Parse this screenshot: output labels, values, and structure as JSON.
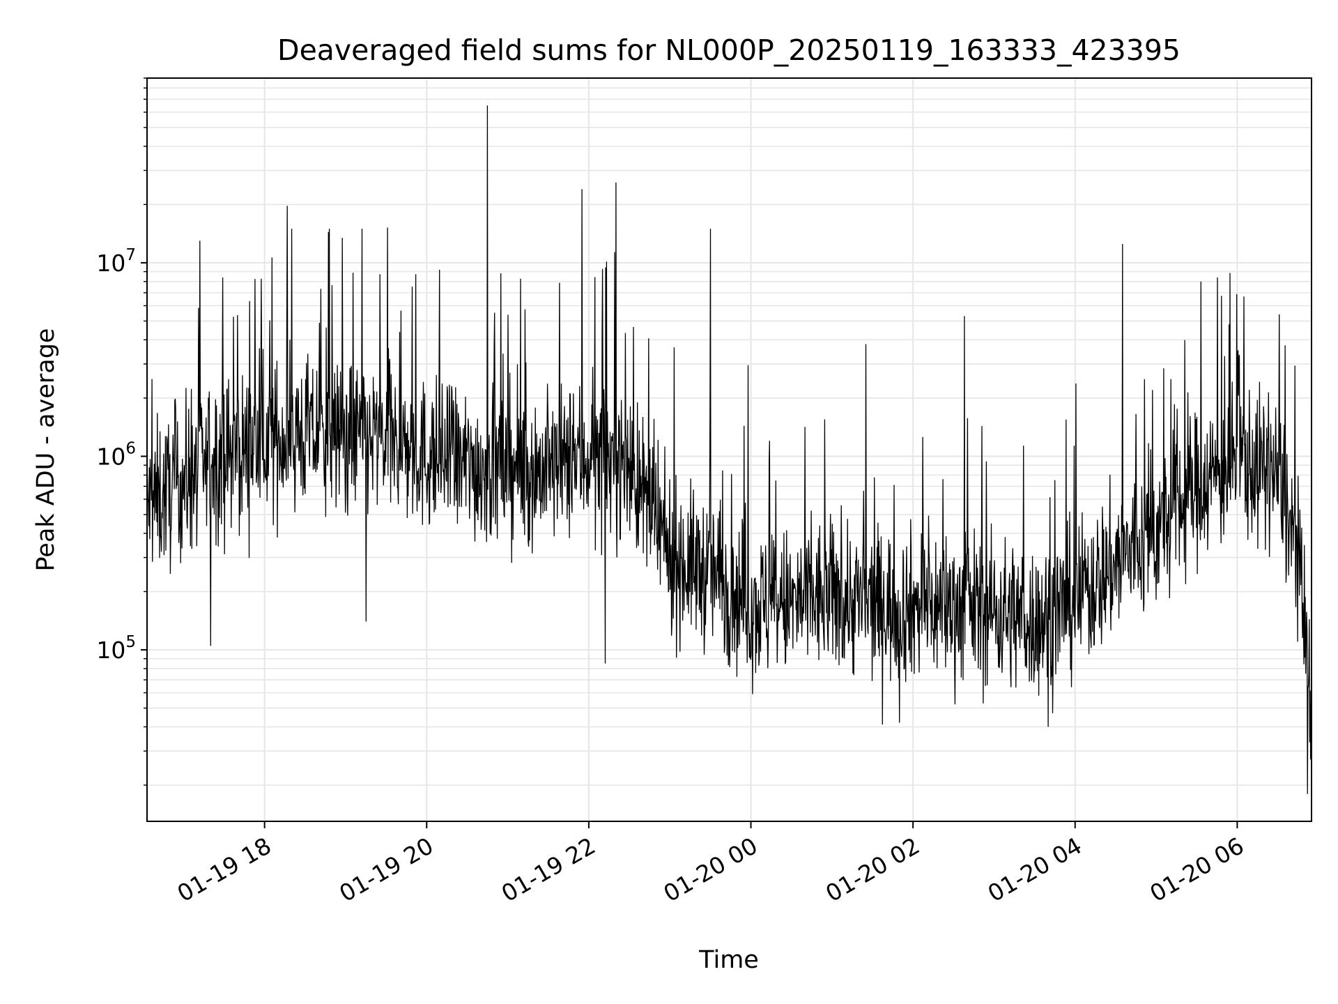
{
  "chart_data": {
    "type": "line",
    "title": "Deaveraged field sums for NL000P_20250119_163333_423395",
    "xlabel": "Time",
    "ylabel": "Peak ADU - average",
    "yscale": "log",
    "ylim": [
      13000,
      90000000
    ],
    "xlim": [
      "2025-01-19 16:33",
      "2025-01-20 06:55"
    ],
    "grid": true,
    "legend": "none",
    "x_ticks": [
      "01-19 18",
      "01-19 20",
      "01-19 22",
      "01-20 00",
      "01-20 02",
      "01-20 04",
      "01-20 06"
    ],
    "y_ticks": [
      {
        "base": "10",
        "exp": "5"
      },
      {
        "base": "10",
        "exp": "6"
      },
      {
        "base": "10",
        "exp": "7"
      }
    ],
    "line_color": "#000000",
    "grid_color": "#e6e6e6",
    "series": [
      {
        "x": [
          "2025-01-19 16:33",
          "2025-01-19 17:00",
          "2025-01-19 17:30",
          "2025-01-19 18:00",
          "2025-01-19 18:30",
          "2025-01-19 19:00",
          "2025-01-19 19:30",
          "2025-01-19 20:00",
          "2025-01-19 20:30",
          "2025-01-19 21:00",
          "2025-01-19 21:30",
          "2025-01-19 22:00",
          "2025-01-19 22:30",
          "2025-01-19 23:00",
          "2025-01-19 23:30",
          "2025-01-20 00:00",
          "2025-01-20 00:30",
          "2025-01-20 01:00",
          "2025-01-20 01:30",
          "2025-01-20 02:00",
          "2025-01-20 02:30",
          "2025-01-20 03:00",
          "2025-01-20 03:30",
          "2025-01-20 04:00",
          "2025-01-20 04:30",
          "2025-01-20 05:00",
          "2025-01-20 05:30",
          "2025-01-20 06:00",
          "2025-01-20 06:30",
          "2025-01-20 06:45",
          "2025-01-20 06:55"
        ],
        "y": [
          550000,
          750000,
          1000000,
          1200000,
          1300000,
          1300000,
          1200000,
          1000000,
          900000,
          850000,
          850000,
          1000000,
          900000,
          300000,
          250000,
          170000,
          170000,
          190000,
          170000,
          170000,
          170000,
          160000,
          140000,
          180000,
          280000,
          400000,
          700000,
          950000,
          800000,
          300000,
          45000
        ]
      }
    ],
    "spikes": [
      {
        "x": "2025-01-19 17:12",
        "y": 13000000
      },
      {
        "x": "2025-01-19 18:20",
        "y": 15000000
      },
      {
        "x": "2025-01-19 18:48",
        "y": 15000000
      },
      {
        "x": "2025-01-19 19:12",
        "y": 15000000
      },
      {
        "x": "2025-01-19 20:45",
        "y": 65000000
      },
      {
        "x": "2025-01-19 21:55",
        "y": 24000000
      },
      {
        "x": "2025-01-19 22:20",
        "y": 26000000
      },
      {
        "x": "2025-01-19 23:30",
        "y": 15000000
      },
      {
        "x": "2025-01-20 01:25",
        "y": 3800000
      },
      {
        "x": "2025-01-20 02:38",
        "y": 5300000
      },
      {
        "x": "2025-01-20 04:35",
        "y": 12500000
      },
      {
        "x": "2025-01-20 05:33",
        "y": 8000000
      },
      {
        "x": "2025-01-20 06:05",
        "y": 6700000
      }
    ],
    "dips": [
      {
        "x": "2025-01-19 17:20",
        "y": 105000
      },
      {
        "x": "2025-01-19 19:15",
        "y": 140000
      },
      {
        "x": "2025-01-19 22:12",
        "y": 85000
      },
      {
        "x": "2025-01-20 01:50",
        "y": 42000
      },
      {
        "x": "2025-01-20 03:40",
        "y": 40000
      },
      {
        "x": "2025-01-20 06:52",
        "y": 18000
      }
    ]
  }
}
